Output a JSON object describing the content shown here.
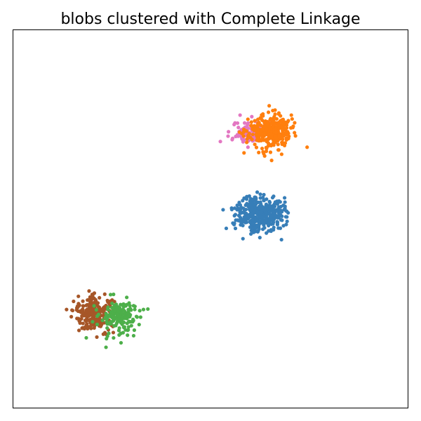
{
  "chart_data": {
    "type": "scatter",
    "title": "blobs clustered with Complete Linkage",
    "xlabel": "",
    "ylabel": "",
    "xlim": [
      0,
      100
    ],
    "ylim": [
      0,
      100
    ],
    "grid": false,
    "axis_ticks": false,
    "series": [
      {
        "color": "#e377c2",
        "clusters": [
          {
            "cx": 60.0,
            "cy": 73.0,
            "sx": 2.2,
            "sy": 1.5,
            "n": 90,
            "seed": 11,
            "extra": [
              [
                52.5,
                70.5
              ],
              [
                55.5,
                71.0
              ],
              [
                57.5,
                77.5
              ],
              [
                56.0,
                75.0
              ],
              [
                59.5,
                69.0
              ]
            ]
          }
        ]
      },
      {
        "color": "#ff7f0e",
        "clusters": [
          {
            "cx": 65.0,
            "cy": 73.2,
            "sx": 2.6,
            "sy": 2.2,
            "n": 320,
            "seed": 23,
            "extra": [
              [
                74.5,
                69.0
              ],
              [
                65.5,
                65.5
              ],
              [
                58.5,
                67.5
              ],
              [
                70.5,
                77.5
              ]
            ]
          }
        ]
      },
      {
        "color": "#377eb8",
        "clusters": [
          {
            "cx": 62.5,
            "cy": 51.5,
            "sx": 3.0,
            "sy": 2.3,
            "n": 380,
            "seed": 37,
            "extra": [
              [
                54.0,
                47.5
              ],
              [
                68.0,
                44.5
              ],
              [
                66.0,
                56.0
              ]
            ]
          }
        ]
      },
      {
        "color": "#a65628",
        "clusters": [
          {
            "cx": 20.5,
            "cy": 25.0,
            "sx": 2.4,
            "sy": 2.2,
            "n": 260,
            "seed": 41,
            "extra": [
              [
                13.5,
                26.0
              ],
              [
                16.5,
                29.5
              ],
              [
                20.0,
                30.0
              ]
            ]
          }
        ]
      },
      {
        "color": "#4daf4a",
        "clusters": [
          {
            "cx": 27.0,
            "cy": 24.0,
            "sx": 2.6,
            "sy": 2.4,
            "n": 170,
            "seed": 53,
            "extra": [
              [
                23.5,
                16.0
              ],
              [
                18.5,
                18.5
              ],
              [
                33.0,
                26.0
              ],
              [
                29.0,
                20.5
              ],
              [
                30.5,
                27.0
              ]
            ]
          }
        ]
      }
    ]
  }
}
